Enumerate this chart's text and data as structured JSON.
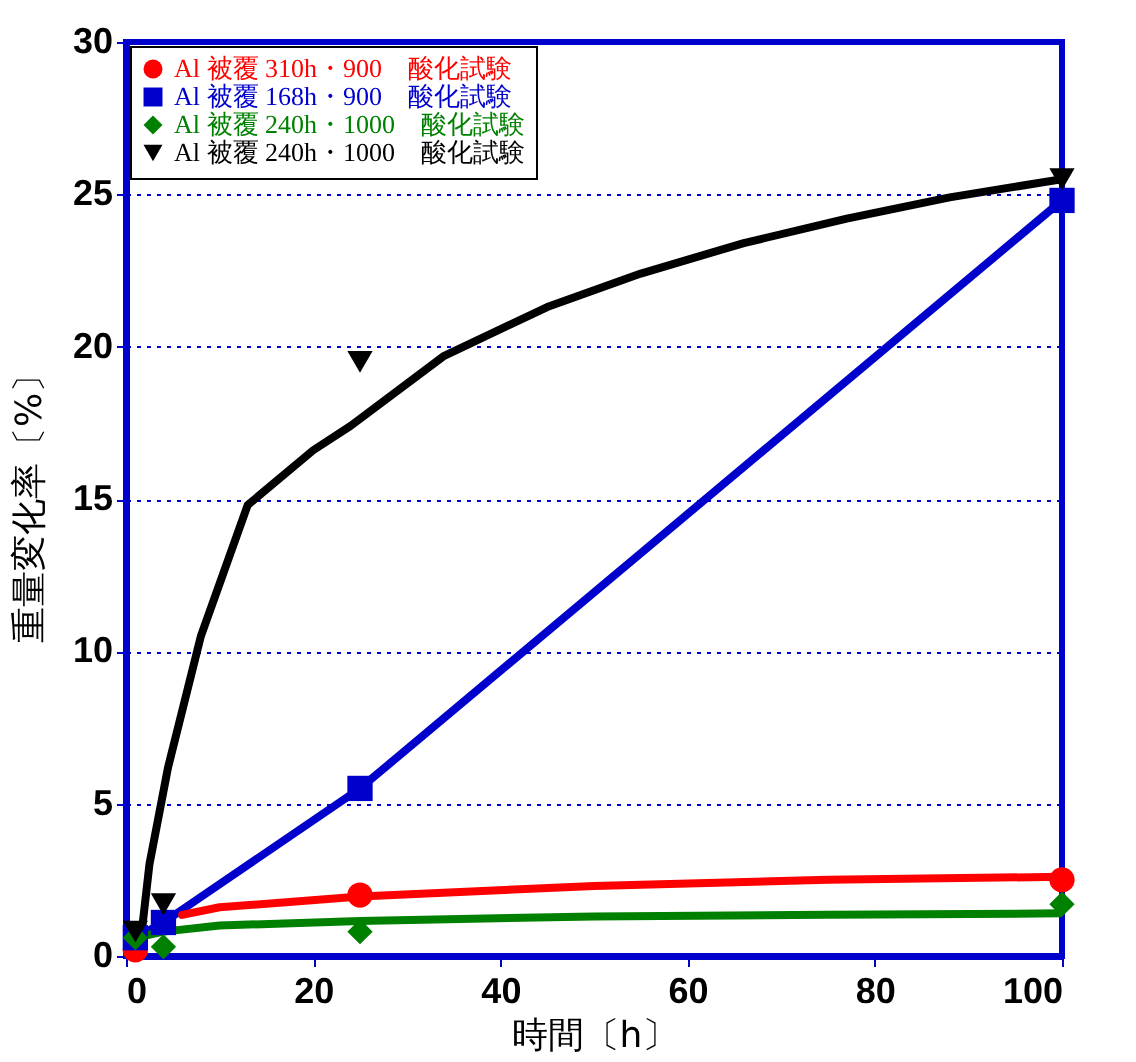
{
  "chart_data": {
    "type": "scatter",
    "xlabel": "時間〔h〕",
    "ylabel": "重量変化率〔%〕",
    "xlim": [
      0,
      100
    ],
    "ylim": [
      0,
      30
    ],
    "xticks": [
      0,
      20,
      40,
      60,
      80,
      100
    ],
    "yticks": [
      0,
      5,
      10,
      15,
      20,
      25,
      30
    ],
    "grid": "y",
    "legend": "top left",
    "series": [
      {
        "name": "Al 被覆 310h・900　酸化試験",
        "color": "#ff0000",
        "type": "scatter",
        "marker": "circle",
        "x": [
          1,
          25,
          100
        ],
        "values": [
          0.2,
          2.0,
          2.5
        ]
      },
      {
        "name": "Al 被覆 168h・900　酸化試験",
        "color": "#0000cc",
        "type": "line",
        "marker": "square",
        "x": [
          1,
          4,
          25,
          100
        ],
        "values": [
          0.6,
          1.1,
          5.5,
          24.8
        ]
      },
      {
        "name": "Al 被覆 240h・1000　酸化試験",
        "color": "#008000",
        "type": "scatter",
        "marker": "diamond",
        "x": [
          1,
          4,
          25,
          100
        ],
        "values": [
          0.6,
          0.3,
          0.8,
          1.7
        ]
      },
      {
        "name": "Al 被覆 240h・1000　酸化試験",
        "color": "#000000",
        "type": "scatter",
        "marker": "triangle",
        "x": [
          1,
          4,
          25,
          100
        ],
        "values": [
          0.8,
          1.7,
          19.5,
          25.5
        ]
      },
      {
        "color": "#ff0000",
        "type": "line",
        "marker": "none",
        "x": [
          6,
          10,
          25,
          50,
          75,
          100
        ],
        "values": [
          1.35,
          1.6,
          1.95,
          2.3,
          2.5,
          2.6
        ]
      },
      {
        "color": "#008000",
        "type": "line",
        "marker": "none",
        "x": [
          1,
          4,
          10,
          25,
          50,
          75,
          100
        ],
        "values": [
          0.6,
          0.8,
          1.0,
          1.15,
          1.3,
          1.35,
          1.4
        ]
      },
      {
        "color": "#000000",
        "type": "line",
        "marker": "none",
        "x": [
          1.5,
          2.5,
          4.5,
          8,
          13,
          20,
          24,
          34,
          45,
          55,
          66,
          77,
          88,
          100
        ],
        "values": [
          0.3,
          3.0,
          6.2,
          10.5,
          14.8,
          16.6,
          17.4,
          19.7,
          21.3,
          22.4,
          23.4,
          24.2,
          24.9,
          25.5
        ]
      }
    ]
  }
}
